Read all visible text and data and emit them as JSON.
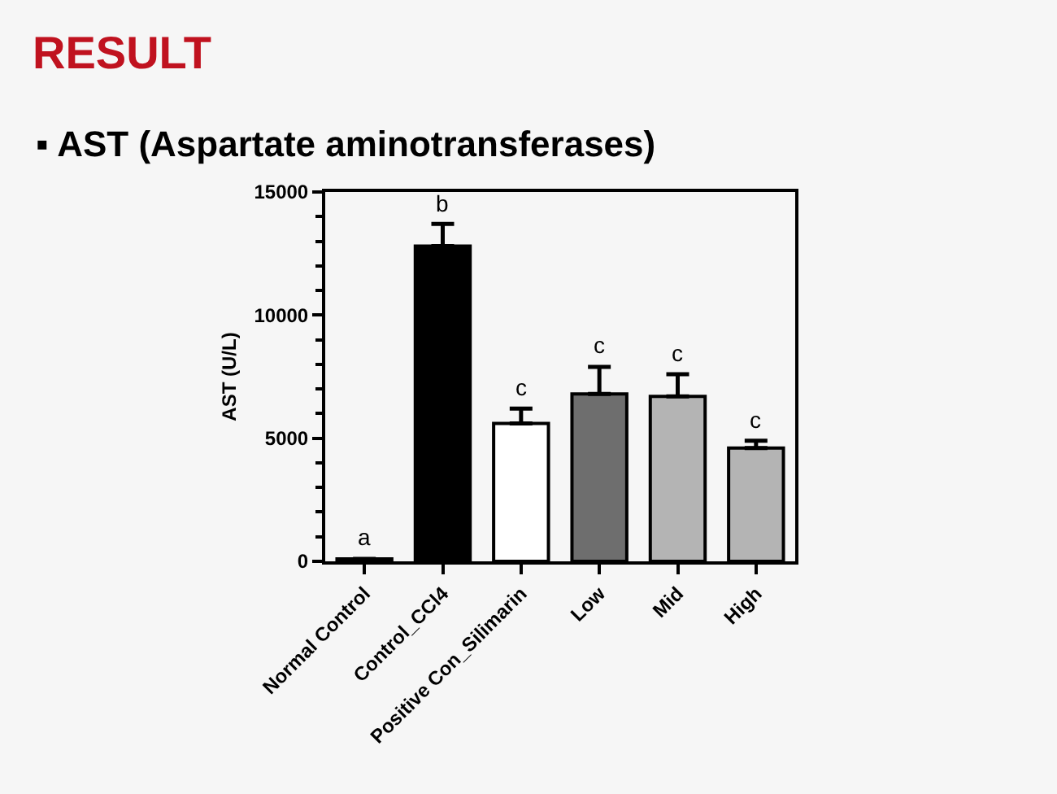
{
  "chart_data": {
    "type": "bar",
    "title": "RESULT",
    "subtitle": "▪ AST (Aspartate aminotransferases)",
    "ylabel": "AST (U/L)",
    "categories": [
      "Normal Control",
      "Control_CCl4",
      "Positive Con_Silimarin",
      "Low",
      "Mid",
      "High"
    ],
    "values": [
      100,
      12800,
      5600,
      6800,
      6700,
      4600
    ],
    "colors": [
      "#000000",
      "#000000",
      "#ffffff",
      "#6e6e6e",
      "#b4b4b4",
      "#b4b4b4"
    ],
    "errors": [
      null,
      [
        12800,
        13700
      ],
      [
        5600,
        6200
      ],
      [
        6800,
        7900
      ],
      [
        6700,
        7600
      ],
      [
        4600,
        4900
      ]
    ],
    "ylim": [
      0,
      15000
    ],
    "yticks": [
      0,
      {
        "value": 1000,
        "label": null
      },
      {
        "value": 2000,
        "label": null
      },
      {
        "value": 3000,
        "label": null
      },
      {
        "value": 4000,
        "label": null
      },
      5000,
      {
        "value": 6000,
        "label": null
      },
      {
        "value": 7000,
        "label": null
      },
      {
        "value": 8000,
        "label": null
      },
      {
        "value": 9000,
        "label": null
      },
      10000,
      {
        "value": 11000,
        "label": null
      },
      {
        "value": 12000,
        "label": null
      },
      {
        "value": 13000,
        "label": null
      },
      {
        "value": 14000,
        "label": null
      },
      15000
    ],
    "grid": false,
    "annotations": [
      {
        "text": "a",
        "x": "Normal Control",
        "y": 100
      },
      {
        "text": "b",
        "x": "Control_CCl4",
        "y": 13700
      },
      {
        "text": "c",
        "x": "Positive Con_Silimarin",
        "y": 6200
      },
      {
        "text": "c",
        "x": "Low",
        "y": 7900
      },
      {
        "text": "c",
        "x": "Mid",
        "y": 7600
      },
      {
        "text": "c",
        "x": "High",
        "y": 4900
      }
    ]
  }
}
